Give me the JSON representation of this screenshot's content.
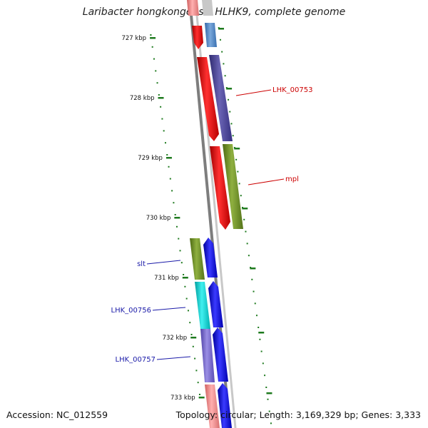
{
  "title": "Laribacter hongkongensis HLHK9, complete genome",
  "footer": {
    "accession": "Accession: NC_012559",
    "topology": "Topology: circular; Length: 3,169,329 bp; Genes: 3,333"
  },
  "ruler_labels": [
    "727 kbp",
    "728 kbp",
    "729 kbp",
    "730 kbp",
    "731 kbp",
    "732 kbp",
    "733 kbp"
  ],
  "gene_labels": [
    {
      "text": "LHK_00753",
      "strand": "forward",
      "color": "#cc0000"
    },
    {
      "text": "mpl",
      "strand": "forward",
      "color": "#cc0000"
    },
    {
      "text": "slt",
      "strand": "reverse",
      "color": "#1a1aa8"
    },
    {
      "text": "LHK_00756",
      "strand": "reverse",
      "color": "#1a1aa8"
    },
    {
      "text": "LHK_00757",
      "strand": "reverse",
      "color": "#1a1aa8"
    }
  ],
  "colors": {
    "cds_forward": "#ff0000",
    "cds_reverse": "#0000ff",
    "cog_olive": "#6b8e23",
    "cog_slate": "#4a4590",
    "cog_cyan": "#00cccc",
    "cog_lavender": "#7466cc",
    "cog_pink": "#f08080",
    "cog_steel": "#4f86c6",
    "tick": "#1e7a1e",
    "backbone": "#8a8a8a"
  }
}
